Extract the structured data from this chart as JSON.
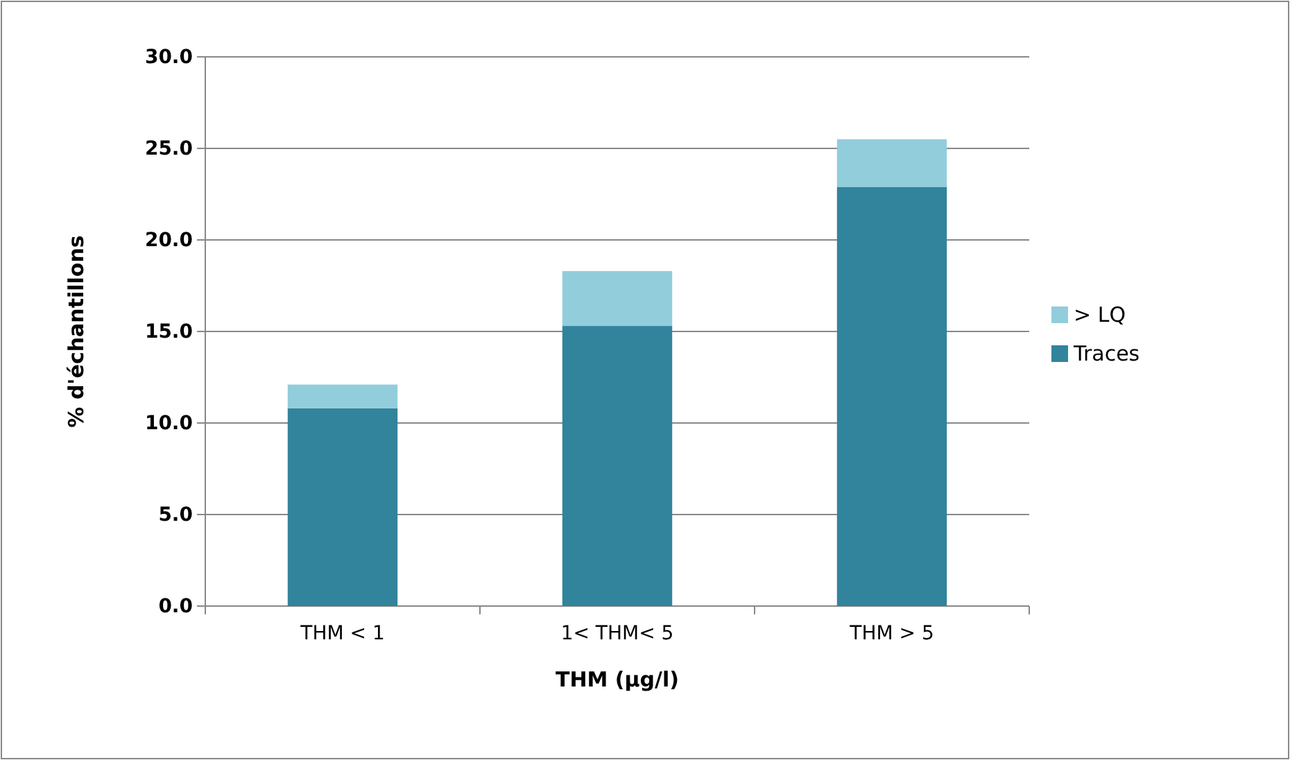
{
  "chart_data": {
    "type": "bar",
    "stacked": true,
    "xlabel": "THM (µg/l)",
    "ylabel": "% d'échantillons",
    "categories": [
      "THM < 1",
      "1< THM< 5",
      "THM > 5"
    ],
    "series": [
      {
        "name": "Traces",
        "color": "#31849b",
        "values": [
          10.8,
          15.3,
          22.9
        ]
      },
      {
        "name": "> LQ",
        "color": "#92cddc",
        "values": [
          1.3,
          3.0,
          2.6
        ]
      }
    ],
    "ylim": [
      0,
      30
    ],
    "yticks": [
      {
        "value": 0,
        "label": "0.0"
      },
      {
        "value": 5,
        "label": "5.0"
      },
      {
        "value": 10,
        "label": "10.0"
      },
      {
        "value": 15,
        "label": "15.0"
      },
      {
        "value": 20,
        "label": "20.0"
      },
      {
        "value": 25,
        "label": "25.0"
      },
      {
        "value": 30,
        "label": "30.0"
      }
    ],
    "grid": "y",
    "legend": "right"
  }
}
